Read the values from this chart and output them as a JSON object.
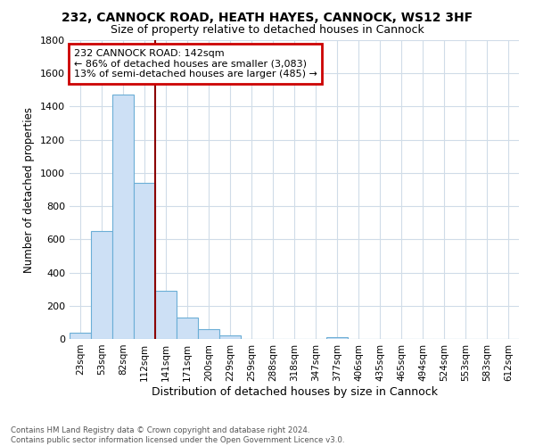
{
  "title1": "232, CANNOCK ROAD, HEATH HAYES, CANNOCK, WS12 3HF",
  "title2": "Size of property relative to detached houses in Cannock",
  "xlabel": "Distribution of detached houses by size in Cannock",
  "ylabel": "Number of detached properties",
  "categories": [
    "23sqm",
    "53sqm",
    "82sqm",
    "112sqm",
    "141sqm",
    "171sqm",
    "200sqm",
    "229sqm",
    "259sqm",
    "288sqm",
    "318sqm",
    "347sqm",
    "377sqm",
    "406sqm",
    "435sqm",
    "465sqm",
    "494sqm",
    "524sqm",
    "553sqm",
    "583sqm",
    "612sqm"
  ],
  "values": [
    40,
    650,
    1470,
    940,
    290,
    130,
    60,
    20,
    0,
    0,
    0,
    0,
    10,
    0,
    0,
    0,
    0,
    0,
    0,
    0,
    0
  ],
  "bar_color": "#cde0f5",
  "bar_edge_color": "#6baed6",
  "vline_x": 3.5,
  "vline_color": "#8b0000",
  "annotation_line1": "232 CANNOCK ROAD: 142sqm",
  "annotation_line2": "← 86% of detached houses are smaller (3,083)",
  "annotation_line3": "13% of semi-detached houses are larger (485) →",
  "annotation_box_color": "white",
  "annotation_box_edge_color": "#cc0000",
  "footnote": "Contains HM Land Registry data © Crown copyright and database right 2024.\nContains public sector information licensed under the Open Government Licence v3.0.",
  "ylim": [
    0,
    1800
  ],
  "yticks": [
    0,
    200,
    400,
    600,
    800,
    1000,
    1200,
    1400,
    1600,
    1800
  ],
  "background_color": "#ffffff",
  "grid_color": "#d0dce8",
  "title1_fontsize": 10,
  "title2_fontsize": 9
}
